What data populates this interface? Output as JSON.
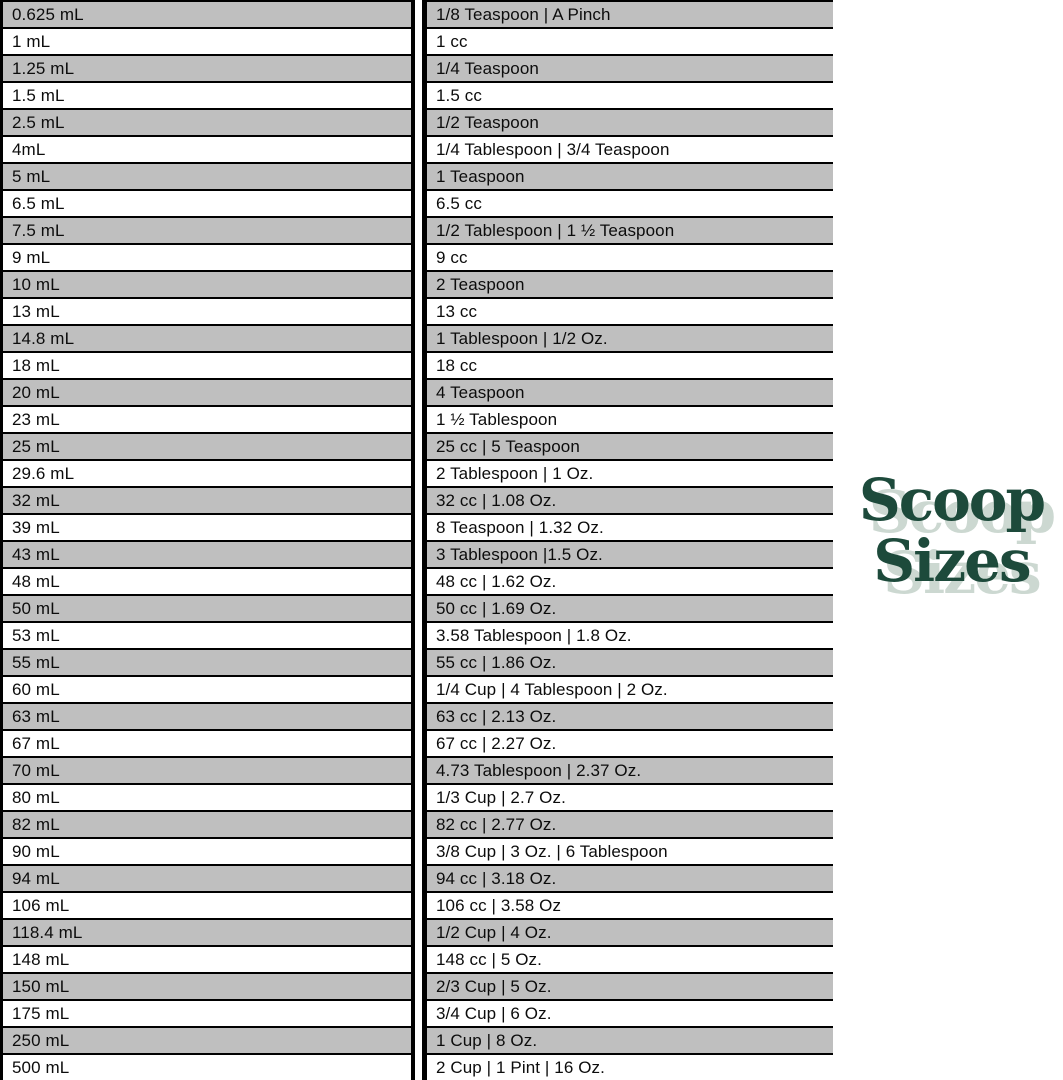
{
  "logo": {
    "line1": "Scoop",
    "line2": "Sizes",
    "text_color": "#1d4a3b",
    "shadow_color": "#ccd8d1"
  },
  "table": {
    "row_shade_color": "#bfbfbf",
    "border_color": "#000000",
    "rows": [
      {
        "ml": "0.625 mL",
        "equivalent": "1/8 Teaspoon | A Pinch"
      },
      {
        "ml": "1 mL",
        "equivalent": "1 cc"
      },
      {
        "ml": "1.25 mL",
        "equivalent": "1/4 Teaspoon"
      },
      {
        "ml": "1.5 mL",
        "equivalent": "1.5 cc"
      },
      {
        "ml": "2.5 mL",
        "equivalent": "1/2 Teaspoon"
      },
      {
        "ml": "4mL",
        "equivalent": "1/4 Tablespoon | 3/4 Teaspoon"
      },
      {
        "ml": "5 mL",
        "equivalent": "1 Teaspoon"
      },
      {
        "ml": "6.5 mL",
        "equivalent": "6.5 cc"
      },
      {
        "ml": "7.5 mL",
        "equivalent": "1/2 Tablespoon | 1 ½ Teaspoon"
      },
      {
        "ml": "9 mL",
        "equivalent": "9 cc"
      },
      {
        "ml": "10 mL",
        "equivalent": "2 Teaspoon"
      },
      {
        "ml": "13 mL",
        "equivalent": "13 cc"
      },
      {
        "ml": "14.8 mL",
        "equivalent": "1 Tablespoon | 1/2 Oz."
      },
      {
        "ml": "18 mL",
        "equivalent": "18 cc"
      },
      {
        "ml": "20 mL",
        "equivalent": "4 Teaspoon"
      },
      {
        "ml": "23 mL",
        "equivalent": "1 ½ Tablespoon"
      },
      {
        "ml": "25 mL",
        "equivalent": "25 cc | 5 Teaspoon"
      },
      {
        "ml": "29.6 mL",
        "equivalent": "2 Tablespoon | 1 Oz."
      },
      {
        "ml": "32 mL",
        "equivalent": "32 cc | 1.08 Oz."
      },
      {
        "ml": "39 mL",
        "equivalent": "8 Teaspoon | 1.32 Oz."
      },
      {
        "ml": "43 mL",
        "equivalent": "3 Tablespoon |1.5 Oz."
      },
      {
        "ml": "48 mL",
        "equivalent": "48 cc | 1.62 Oz."
      },
      {
        "ml": "50 mL",
        "equivalent": "50 cc | 1.69 Oz."
      },
      {
        "ml": "53 mL",
        "equivalent": "3.58 Tablespoon | 1.8 Oz."
      },
      {
        "ml": "55 mL",
        "equivalent": "55 cc | 1.86 Oz."
      },
      {
        "ml": "60 mL",
        "equivalent": "1/4 Cup | 4 Tablespoon | 2 Oz."
      },
      {
        "ml": "63 mL",
        "equivalent": "63 cc | 2.13 Oz."
      },
      {
        "ml": "67 mL",
        "equivalent": "67 cc | 2.27 Oz."
      },
      {
        "ml": "70 mL",
        "equivalent": "4.73 Tablespoon | 2.37 Oz."
      },
      {
        "ml": "80 mL",
        "equivalent": "1/3 Cup | 2.7 Oz."
      },
      {
        "ml": "82 mL",
        "equivalent": "82 cc | 2.77 Oz."
      },
      {
        "ml": "90 mL",
        "equivalent": "3/8 Cup | 3 Oz. | 6 Tablespoon"
      },
      {
        "ml": "94 mL",
        "equivalent": "94 cc | 3.18 Oz."
      },
      {
        "ml": "106 mL",
        "equivalent": "106 cc | 3.58 Oz"
      },
      {
        "ml": "118.4 mL",
        "equivalent": "1/2 Cup | 4 Oz."
      },
      {
        "ml": "148 mL",
        "equivalent": "148 cc | 5 Oz."
      },
      {
        "ml": "150 mL",
        "equivalent": "2/3 Cup | 5 Oz."
      },
      {
        "ml": "175 mL",
        "equivalent": "3/4 Cup | 6 Oz."
      },
      {
        "ml": "250 mL",
        "equivalent": "1 Cup | 8 Oz."
      },
      {
        "ml": "500 mL",
        "equivalent": "2 Cup | 1 Pint | 16 Oz."
      }
    ]
  }
}
